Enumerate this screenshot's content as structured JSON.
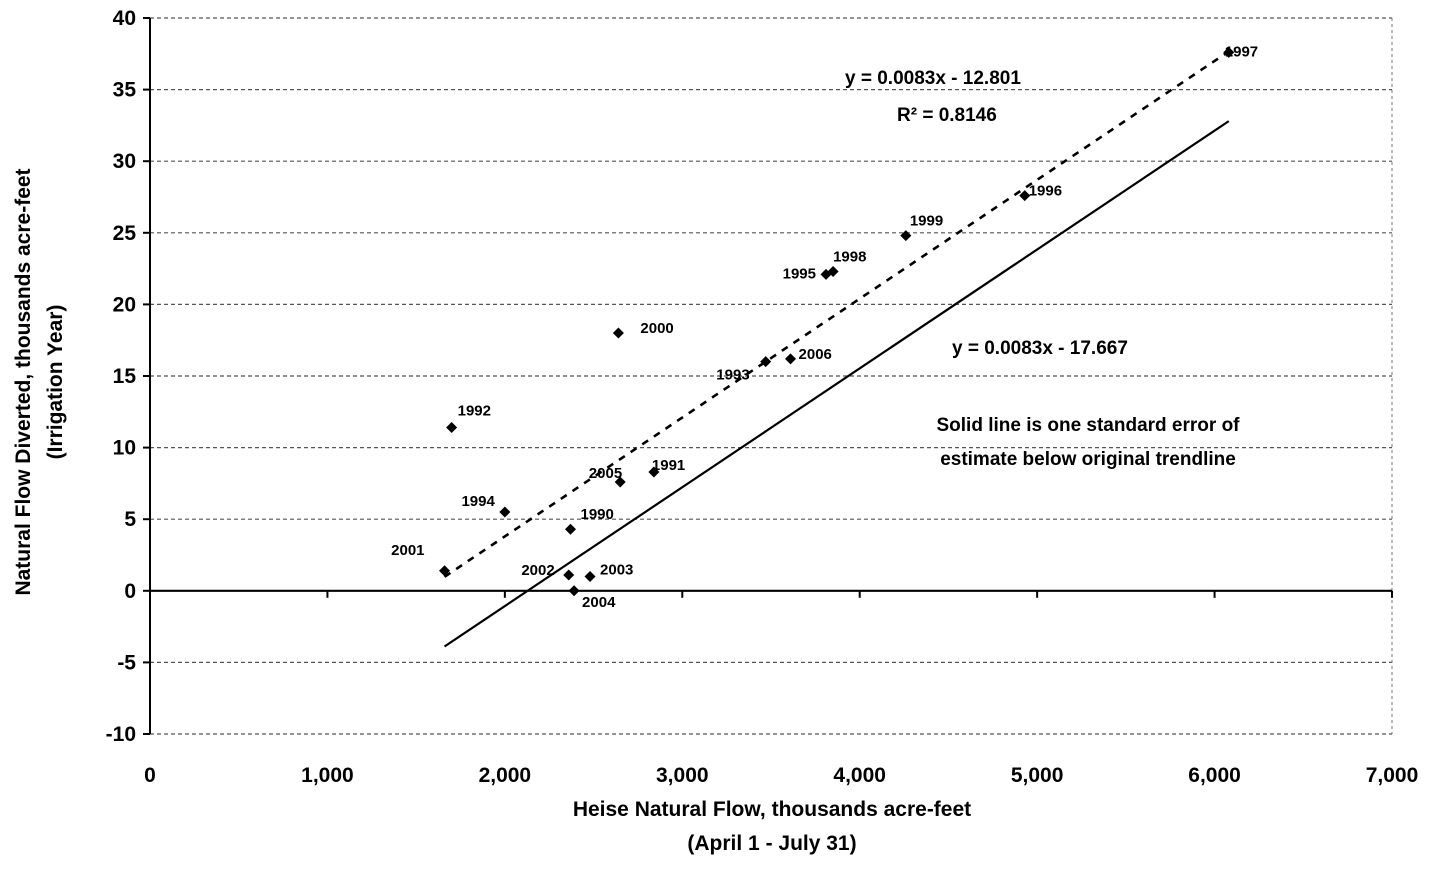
{
  "chart_data": {
    "type": "scatter",
    "xlabel": "Heise Natural Flow, thousands acre-feet",
    "xlabel_sub": "(April 1 - July 31)",
    "ylabel": "Natural Flow Diverted, thousands acre-feet",
    "ylabel_sub": "(Irrigation Year)",
    "xlim": [
      0,
      7000
    ],
    "ylim": [
      -10,
      40
    ],
    "x_ticks": [
      0,
      1000,
      2000,
      3000,
      4000,
      5000,
      6000,
      7000
    ],
    "x_tick_labels": [
      "0",
      "1,000",
      "2,000",
      "3,000",
      "4,000",
      "5,000",
      "6,000",
      "7,000"
    ],
    "y_ticks": [
      -10,
      -5,
      0,
      5,
      10,
      15,
      20,
      25,
      30,
      35,
      40
    ],
    "y_tick_labels": [
      "-10",
      "-5",
      "0",
      "5",
      "10",
      "15",
      "20",
      "25",
      "30",
      "35",
      "40"
    ],
    "grid": true,
    "points": [
      {
        "label": "1990",
        "x": 2370,
        "y": 4.3
      },
      {
        "label": "1991",
        "x": 2840,
        "y": 8.3
      },
      {
        "label": "1992",
        "x": 1700,
        "y": 11.4
      },
      {
        "label": "1993",
        "x": 3470,
        "y": 16.0
      },
      {
        "label": "1994",
        "x": 2000,
        "y": 5.5
      },
      {
        "label": "1995",
        "x": 3810,
        "y": 22.1
      },
      {
        "label": "1996",
        "x": 4930,
        "y": 27.6
      },
      {
        "label": "1997",
        "x": 6080,
        "y": 37.6
      },
      {
        "label": "1998",
        "x": 3850,
        "y": 22.3
      },
      {
        "label": "1999",
        "x": 4260,
        "y": 24.8
      },
      {
        "label": "2000",
        "x": 2640,
        "y": 18.0
      },
      {
        "label": "2001",
        "x": 1660,
        "y": 1.4
      },
      {
        "label": "2002",
        "x": 2360,
        "y": 1.1
      },
      {
        "label": "2003",
        "x": 2480,
        "y": 1.0
      },
      {
        "label": "2004",
        "x": 2390,
        "y": 0.0
      },
      {
        "label": "2005",
        "x": 2650,
        "y": 7.6
      },
      {
        "label": "2006",
        "x": 3610,
        "y": 16.2
      }
    ],
    "trendlines": [
      {
        "style": "dashed",
        "slope": 0.0083,
        "intercept": -12.801,
        "x_range": [
          1660,
          6080
        ]
      },
      {
        "style": "solid",
        "slope": 0.0083,
        "intercept": -17.667,
        "x_range": [
          1660,
          6080
        ]
      }
    ],
    "annotations": {
      "dashed_equation": "y = 0.0083x - 12.801",
      "dashed_r2": "R² = 0.8146",
      "solid_equation": "y = 0.0083x - 17.667",
      "note_line1": "Solid line is one standard error of",
      "note_line2": "estimate below original trendline"
    }
  }
}
